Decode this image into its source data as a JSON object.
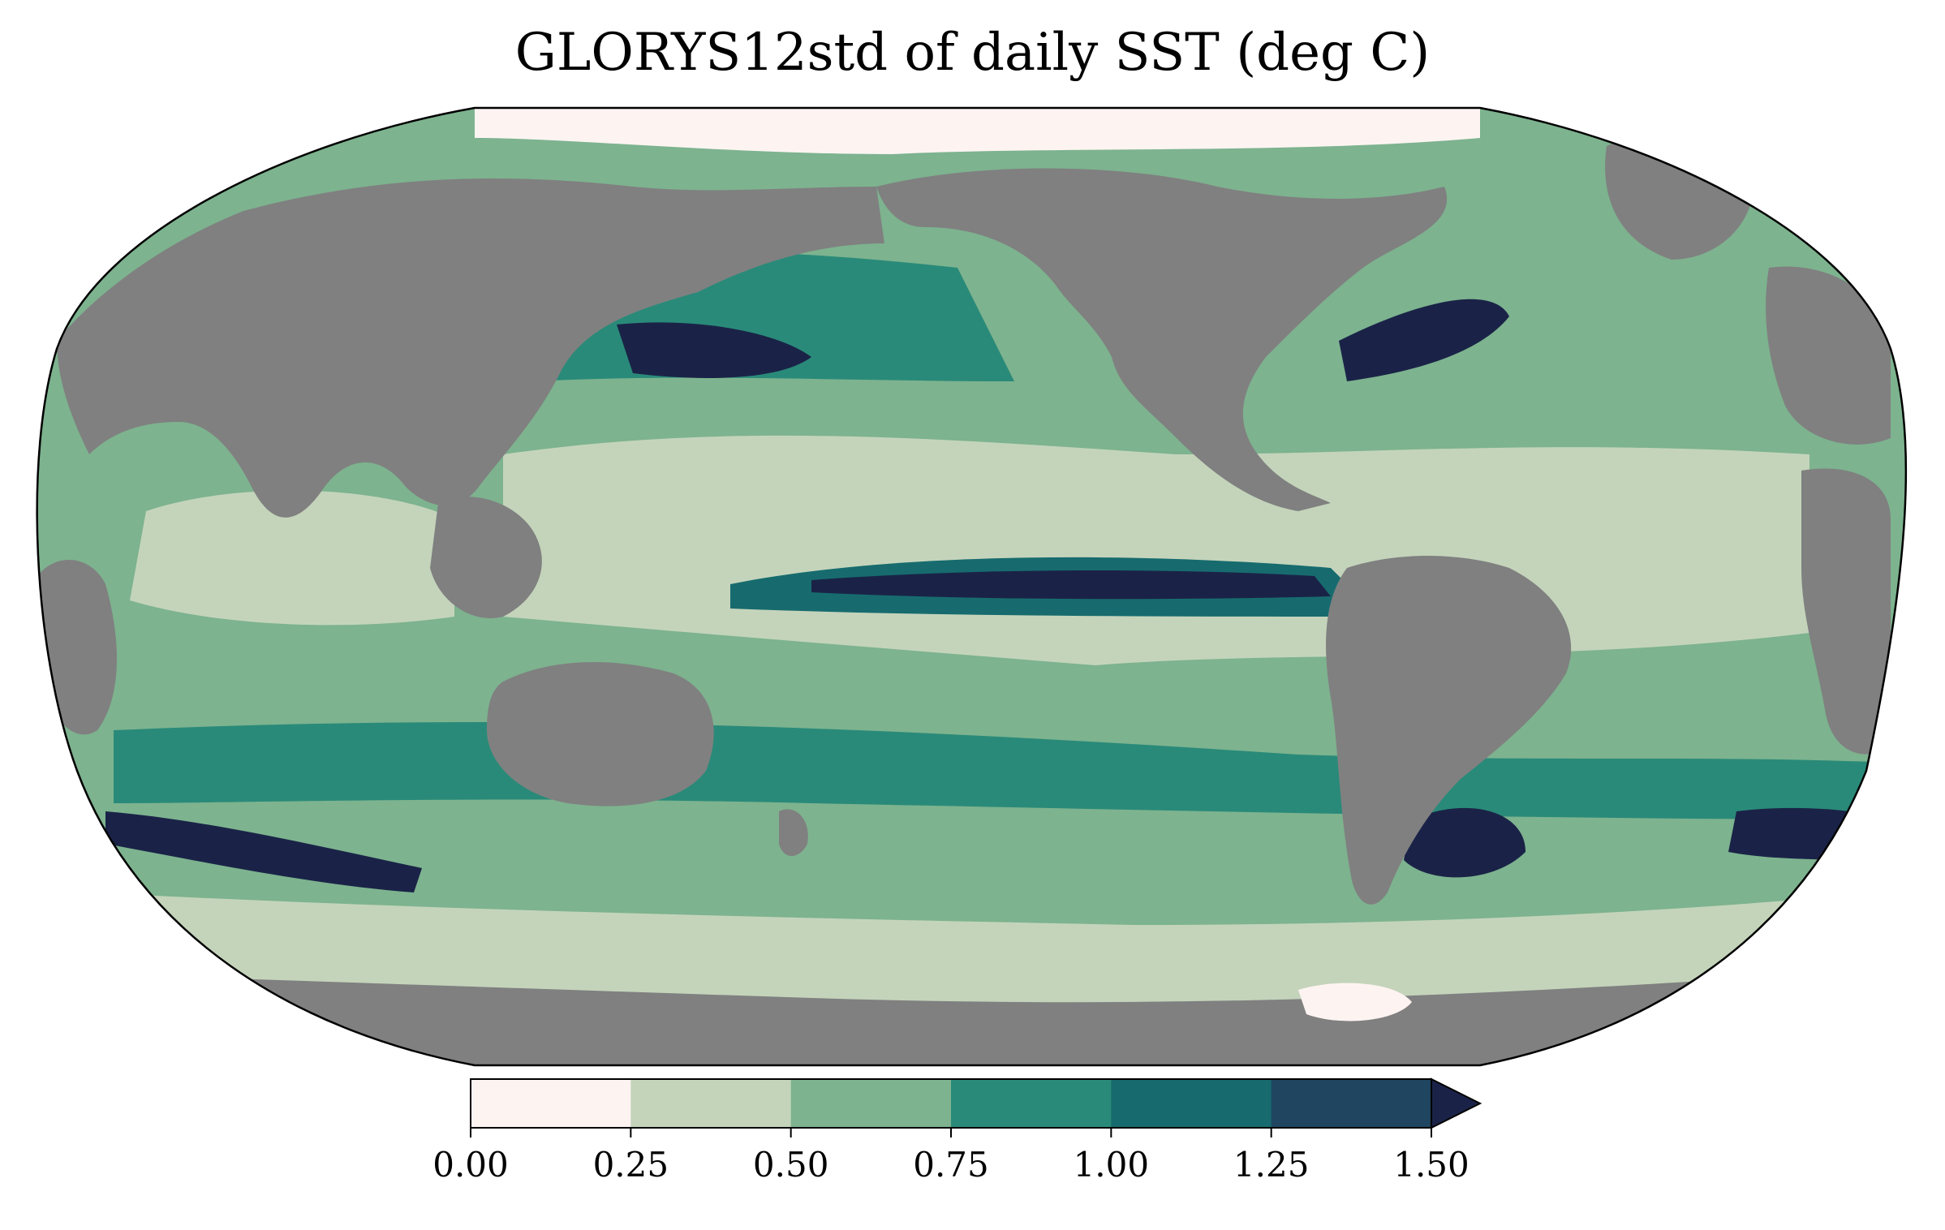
{
  "title": "GLORYS12std of daily SST (deg C)",
  "colors": {
    "land": "#808080",
    "ocean_base": "#7db38f",
    "levels": [
      "#fdf4f2",
      "#c4d4bb",
      "#7db38f",
      "#2a8a79",
      "#176b6e",
      "#1f4561",
      "#1a2347"
    ]
  },
  "colorbar": {
    "ticks": [
      "0.00",
      "0.25",
      "0.50",
      "0.75",
      "1.00",
      "1.25",
      "1.50"
    ],
    "bins": [
      {
        "from": 0.0,
        "to": 0.25
      },
      {
        "from": 0.25,
        "to": 0.5
      },
      {
        "from": 0.5,
        "to": 0.75
      },
      {
        "from": 0.75,
        "to": 1.0
      },
      {
        "from": 1.0,
        "to": 1.25
      },
      {
        "from": 1.25,
        "to": 1.5
      }
    ],
    "extend": "max"
  }
}
